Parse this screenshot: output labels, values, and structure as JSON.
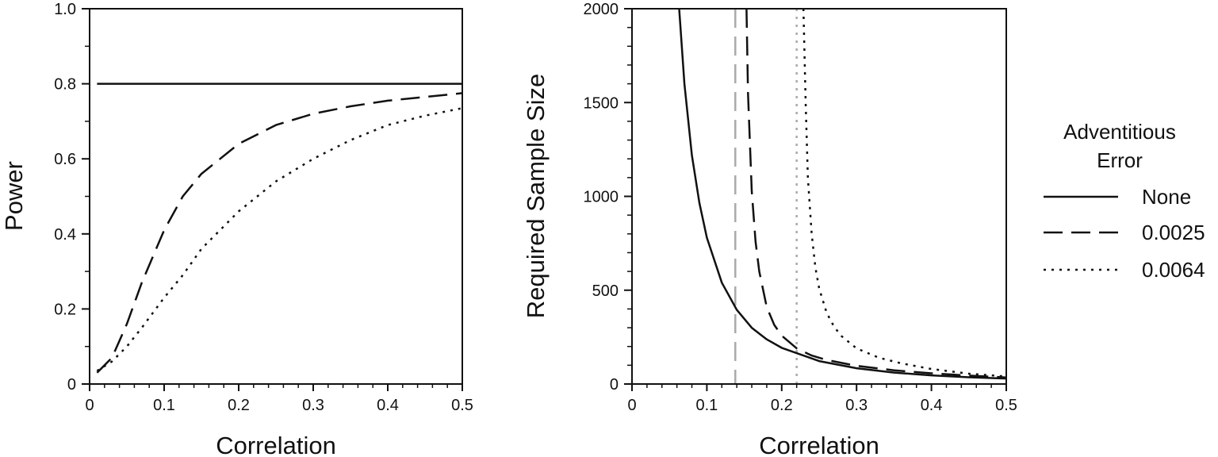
{
  "chart_data": [
    {
      "type": "line",
      "xlabel": "Correlation",
      "ylabel": "Power",
      "xlim": [
        0,
        0.5
      ],
      "ylim": [
        0,
        1.0
      ],
      "xticks": [
        "0",
        "0.1",
        "0.2",
        "0.3",
        "0.4",
        "0.5"
      ],
      "yticks": [
        "0",
        "0.2",
        "0.4",
        "0.6",
        "0.8",
        "1.0"
      ],
      "grid": false,
      "series": [
        {
          "name": "None",
          "style": "solid",
          "color": "#111111",
          "x": [
            0.01,
            0.1,
            0.2,
            0.3,
            0.4,
            0.5
          ],
          "y": [
            0.8,
            0.8,
            0.8,
            0.8,
            0.8,
            0.8
          ]
        },
        {
          "name": "0.0025",
          "style": "dashed",
          "color": "#111111",
          "x": [
            0.01,
            0.03,
            0.05,
            0.07,
            0.1,
            0.125,
            0.15,
            0.2,
            0.25,
            0.3,
            0.35,
            0.4,
            0.45,
            0.5
          ],
          "y": [
            0.03,
            0.07,
            0.16,
            0.27,
            0.41,
            0.5,
            0.56,
            0.64,
            0.69,
            0.72,
            0.74,
            0.755,
            0.765,
            0.775
          ]
        },
        {
          "name": "0.0064",
          "style": "dotted",
          "color": "#111111",
          "x": [
            0.01,
            0.03,
            0.05,
            0.07,
            0.1,
            0.125,
            0.15,
            0.2,
            0.25,
            0.3,
            0.35,
            0.4,
            0.45,
            0.5
          ],
          "y": [
            0.035,
            0.06,
            0.1,
            0.15,
            0.23,
            0.29,
            0.36,
            0.46,
            0.54,
            0.6,
            0.65,
            0.69,
            0.715,
            0.735
          ]
        }
      ]
    },
    {
      "type": "line",
      "xlabel": "Correlation",
      "ylabel": "Required Sample Size",
      "xlim": [
        0,
        0.5
      ],
      "ylim": [
        0,
        2000
      ],
      "xticks": [
        "0",
        "0.1",
        "0.2",
        "0.3",
        "0.4",
        "0.5"
      ],
      "yticks": [
        "0",
        "500",
        "1000",
        "1500",
        "2000"
      ],
      "grid": false,
      "series": [
        {
          "name": "None",
          "style": "solid",
          "color": "#111111",
          "x": [
            0.063,
            0.07,
            0.08,
            0.09,
            0.1,
            0.12,
            0.14,
            0.16,
            0.18,
            0.2,
            0.25,
            0.3,
            0.35,
            0.4,
            0.45,
            0.5
          ],
          "y": [
            2000,
            1600,
            1220,
            965,
            780,
            540,
            395,
            300,
            238,
            193,
            122,
            84,
            61,
            46,
            36,
            29
          ]
        },
        {
          "name": "0.0025",
          "style": "dashed",
          "color": "#111111",
          "x": [
            0.153,
            0.155,
            0.16,
            0.165,
            0.17,
            0.18,
            0.19,
            0.2,
            0.22,
            0.24,
            0.26,
            0.3,
            0.35,
            0.4,
            0.45,
            0.5
          ],
          "y": [
            2000,
            1550,
            1030,
            760,
            600,
            410,
            315,
            258,
            190,
            152,
            128,
            97,
            73,
            57,
            45,
            35
          ]
        },
        {
          "name": "0.0064",
          "style": "dotted",
          "color": "#111111",
          "x": [
            0.229,
            0.232,
            0.235,
            0.24,
            0.245,
            0.25,
            0.26,
            0.27,
            0.28,
            0.3,
            0.33,
            0.36,
            0.4,
            0.45,
            0.5
          ],
          "y": [
            2000,
            1500,
            1100,
            800,
            620,
            510,
            380,
            305,
            255,
            190,
            140,
            110,
            80,
            55,
            40
          ]
        }
      ],
      "reference_lines": [
        {
          "x": 0.138,
          "style": "dashed",
          "color": "#aaaaaa"
        },
        {
          "x": 0.22,
          "style": "dotted",
          "color": "#aaaaaa"
        }
      ]
    }
  ],
  "legend": {
    "title_line1": "Adventitious",
    "title_line2": "Error",
    "placement": "right",
    "entries": [
      {
        "label": "None",
        "style": "solid"
      },
      {
        "label": "0.0025",
        "style": "dashed"
      },
      {
        "label": "0.0064",
        "style": "dotted"
      }
    ]
  }
}
